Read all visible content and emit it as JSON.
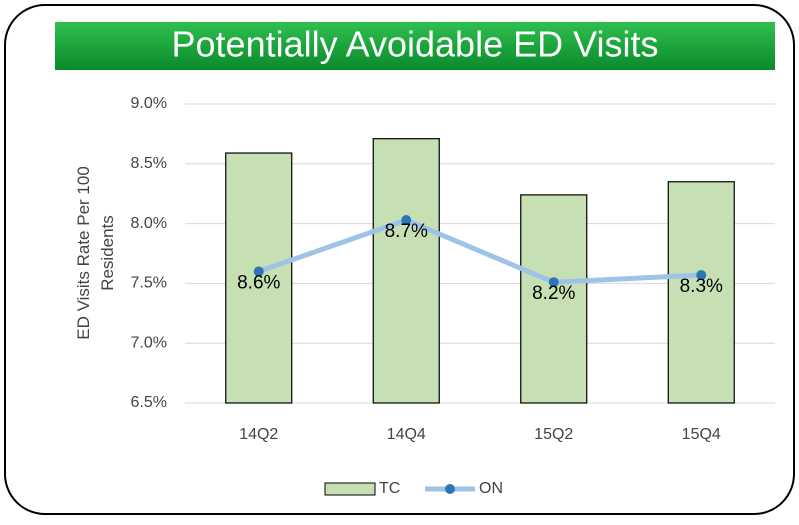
{
  "chart_data": {
    "type": "bar",
    "title": "Potentially Avoidable ED Visits",
    "y_label": "ED Visits Rate Per 100 Residents",
    "categories": [
      "14Q2",
      "14Q4",
      "15Q2",
      "15Q4"
    ],
    "series": [
      {
        "name": "TC",
        "type": "bar",
        "color": "#c6e0b4",
        "values": [
          8.59,
          8.71,
          8.24,
          8.35
        ],
        "value_labels": [
          "8.6%",
          "8.7%",
          "8.2%",
          "8.3%"
        ]
      },
      {
        "name": "ON",
        "type": "line",
        "color": "#9dc3e6",
        "marker_color": "#2e75b6",
        "values": [
          7.6,
          8.03,
          7.51,
          7.57
        ]
      }
    ],
    "ylim": [
      6.5,
      9.0
    ],
    "yticks": [
      {
        "value": 6.5,
        "label": "6.5%"
      },
      {
        "value": 7.0,
        "label": "7.0%"
      },
      {
        "value": 7.5,
        "label": "7.5%"
      },
      {
        "value": 8.0,
        "label": "8.0%"
      },
      {
        "value": 8.5,
        "label": "8.5%"
      },
      {
        "value": 9.0,
        "label": "9.0%"
      }
    ],
    "grid": true,
    "legend": "bottom"
  }
}
